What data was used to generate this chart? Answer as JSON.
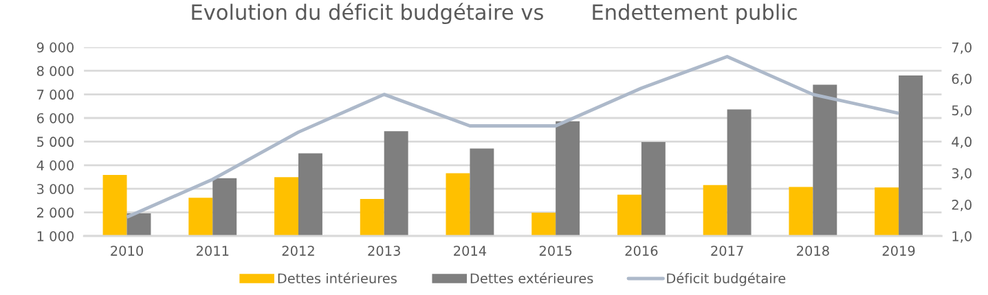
{
  "chart_data": {
    "type": "bar",
    "title": "Evolution du déficit budgétaire vs       Endettement public",
    "categories": [
      "2010",
      "2011",
      "2012",
      "2013",
      "2014",
      "2015",
      "2016",
      "2017",
      "2018",
      "2019"
    ],
    "series": [
      {
        "name": "Dettes intérieures",
        "color": "#ffc000",
        "values": [
          3590,
          2620,
          3490,
          2570,
          3660,
          1990,
          2750,
          3160,
          3080,
          3060
        ]
      },
      {
        "name": "Dettes extérieures",
        "color": "#7f7f7f",
        "values": [
          1960,
          3450,
          4500,
          5440,
          4710,
          5860,
          4980,
          6360,
          7410,
          7800
        ]
      },
      {
        "name": "Déficit budgétaire",
        "type": "line",
        "axis": "y2",
        "color": "#adb9ca",
        "values": [
          1.6,
          2.8,
          4.3,
          5.5,
          4.5,
          4.5,
          5.7,
          6.7,
          5.5,
          4.9
        ]
      }
    ],
    "ylim": [
      1000,
      9000
    ],
    "yticks": [
      {
        "value": 1000,
        "label": "1 000"
      },
      {
        "value": 2000,
        "label": "2 000"
      },
      {
        "value": 3000,
        "label": "3 000"
      },
      {
        "value": 4000,
        "label": "4 000"
      },
      {
        "value": 5000,
        "label": "5 000"
      },
      {
        "value": 6000,
        "label": "6 000"
      },
      {
        "value": 7000,
        "label": "7 000"
      },
      {
        "value": 8000,
        "label": "8 000"
      },
      {
        "value": 9000,
        "label": "9 000"
      }
    ],
    "y2lim": [
      1,
      7
    ],
    "y2ticks": [
      {
        "value": 1,
        "label": "1,0"
      },
      {
        "value": 2,
        "label": "2,0"
      },
      {
        "value": 3,
        "label": "3,0"
      },
      {
        "value": 4,
        "label": "4,0"
      },
      {
        "value": 5,
        "label": "5,0"
      },
      {
        "value": 6,
        "label": "6,0"
      },
      {
        "value": 7,
        "label": "7,0"
      }
    ],
    "grid": "y",
    "legend": "bottom"
  }
}
